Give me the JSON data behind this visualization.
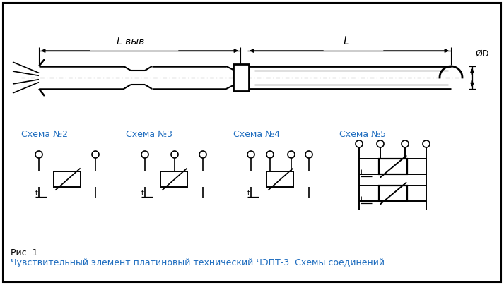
{
  "bg_color": "#ffffff",
  "border_color": "#000000",
  "line_color": "#000000",
  "blue_color": "#1f6dbf",
  "schema_labels": [
    "Схема №2",
    "Схема №3",
    "Схема №4",
    "Схема №5"
  ],
  "fig_caption_line1": "Рис. 1",
  "fig_caption_line2": "Чувствительный элемент платиновый технический ЧЭПТ-3. Схемы соединений.",
  "L_vyv_label": "L выв",
  "L_label": "L",
  "D_label": "ØD"
}
